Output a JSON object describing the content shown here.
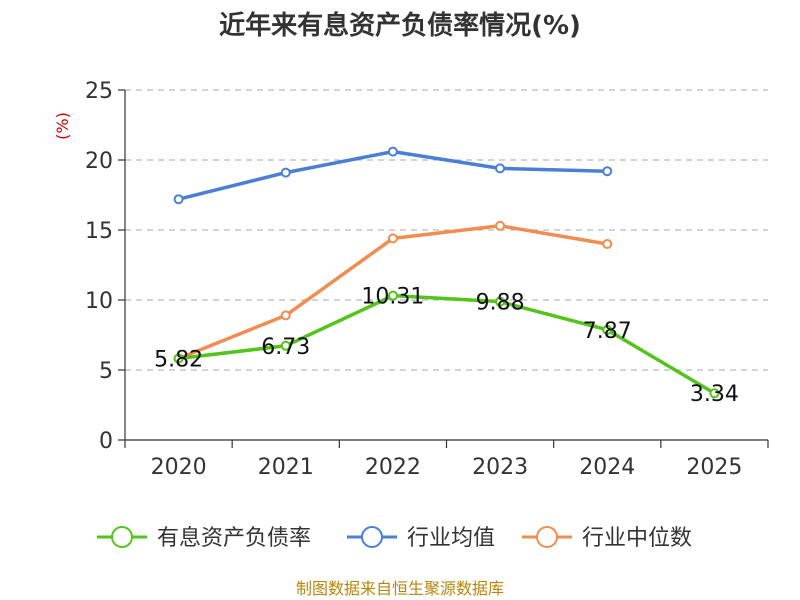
{
  "chart_data": {
    "type": "line",
    "title": "近年来有息资产负债率情况(%)",
    "ylabel": "(%)",
    "categories": [
      "2020",
      "2021",
      "2022",
      "2023",
      "2024",
      "2025"
    ],
    "ylim": [
      0,
      25
    ],
    "yticks": [
      0,
      5,
      10,
      15,
      20,
      25
    ],
    "grid": true,
    "legend_position": "bottom",
    "series": [
      {
        "name": "有息资产负债率",
        "color": "#52c41a",
        "values": [
          5.82,
          6.73,
          10.31,
          9.88,
          7.87,
          3.34
        ],
        "labels": [
          "5.82",
          "6.73",
          "10.31",
          "9.88",
          "7.87",
          "3.34"
        ]
      },
      {
        "name": "行业均值",
        "color": "#4a7fd6",
        "values": [
          17.2,
          19.1,
          20.6,
          19.4,
          19.2,
          null
        ]
      },
      {
        "name": "行业中位数",
        "color": "#f28c50",
        "values": [
          5.82,
          8.9,
          14.4,
          15.3,
          14.0,
          null
        ]
      }
    ],
    "source": "制图数据来自恒生聚源数据库"
  }
}
